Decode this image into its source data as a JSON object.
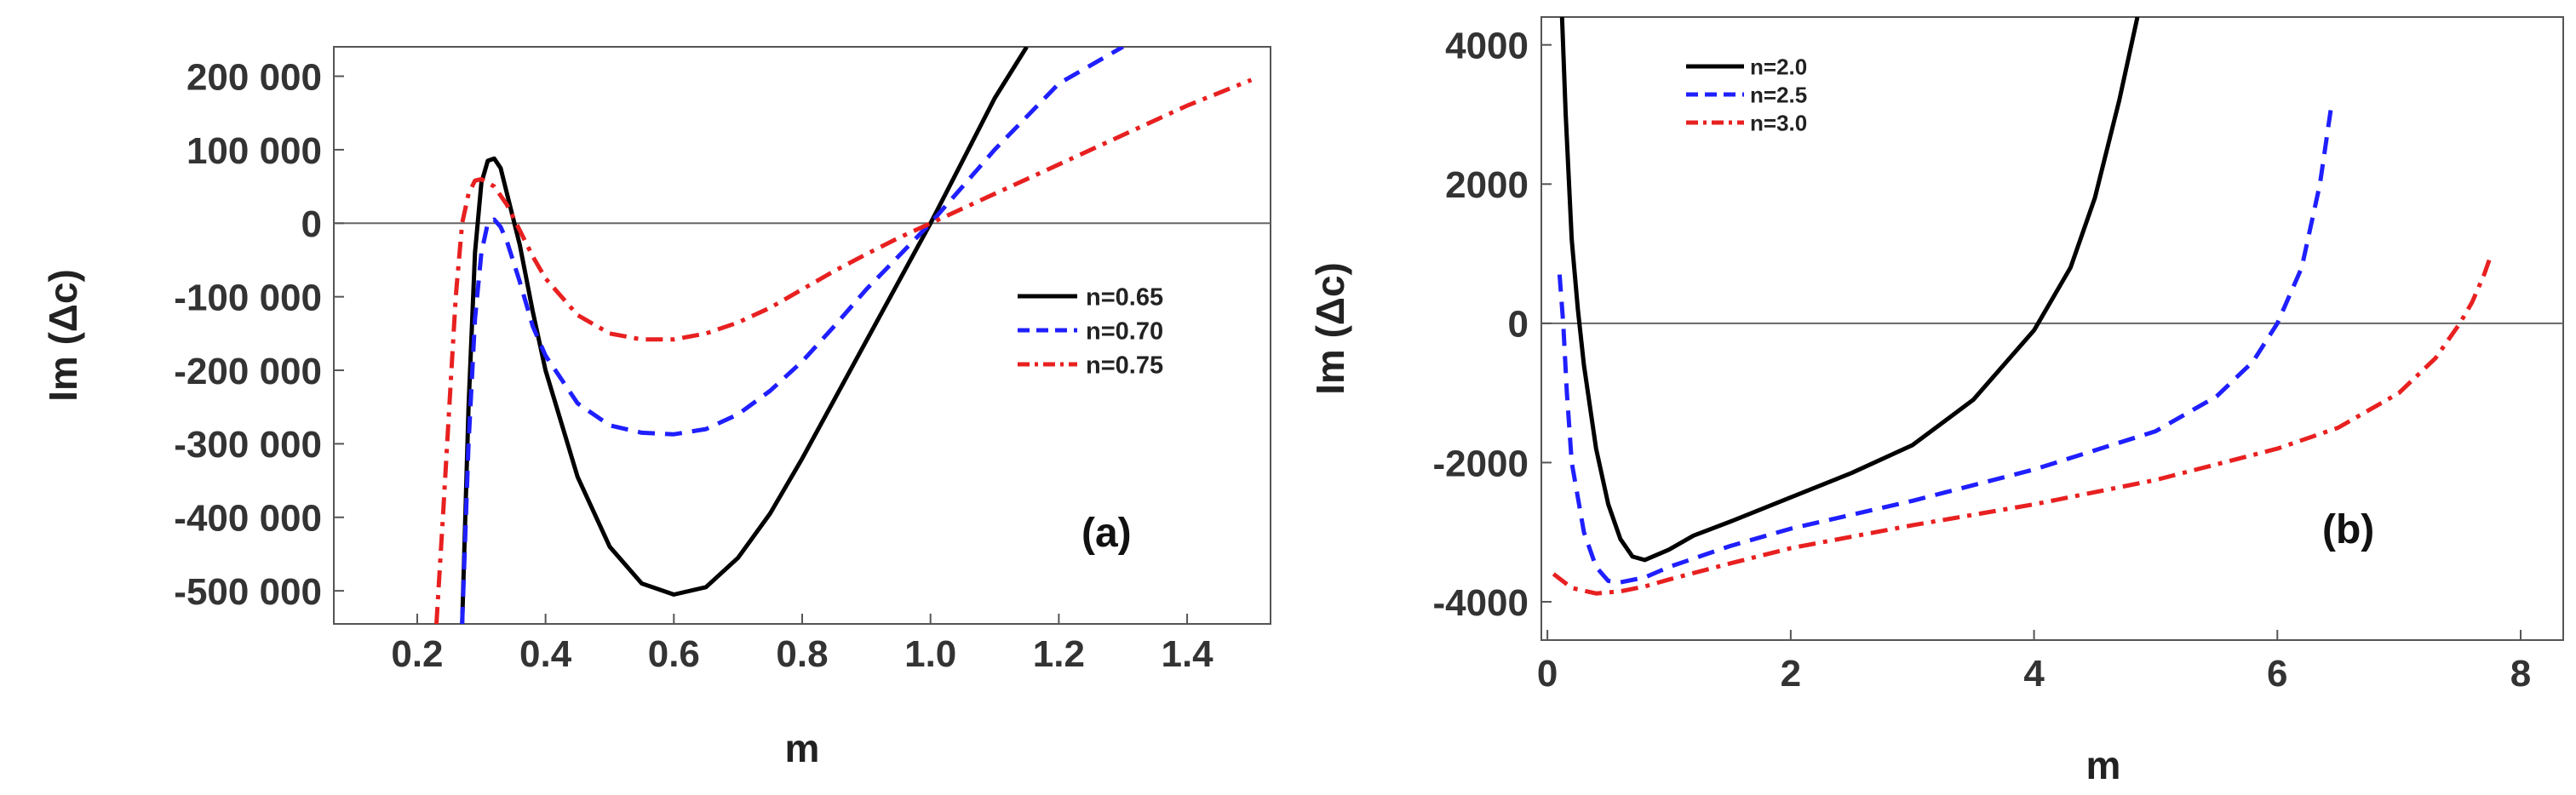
{
  "chart_data": [
    {
      "type": "line",
      "panel_label": "(a)",
      "xlabel": "m",
      "ylabel": "Im (Δc)",
      "xlim": [
        0.07,
        1.53
      ],
      "ylim": [
        -545000,
        240000
      ],
      "xticks": [
        0.2,
        0.4,
        0.6,
        0.8,
        1.0,
        1.2,
        1.4
      ],
      "xtick_labels": [
        "0.2",
        "0.4",
        "0.6",
        "0.8",
        "1.0",
        "1.2",
        "1.4"
      ],
      "yticks": [
        200000,
        100000,
        0,
        -100000,
        -200000,
        -300000,
        -400000,
        -500000
      ],
      "ytick_labels": [
        "200 000",
        "100 000",
        "0",
        "-100 000",
        "-200 000",
        "-300 000",
        "-400 000",
        "-500 000"
      ],
      "legend_position": "right",
      "grid": false,
      "zero_line": true,
      "series": [
        {
          "name": "n=0.65",
          "color": "#000000",
          "style": "solid",
          "x": [
            0.27,
            0.28,
            0.29,
            0.3,
            0.31,
            0.32,
            0.33,
            0.34,
            0.36,
            0.38,
            0.4,
            0.45,
            0.5,
            0.55,
            0.6,
            0.65,
            0.7,
            0.75,
            0.8,
            0.85,
            0.9,
            0.95,
            1.0,
            1.05,
            1.1,
            1.15
          ],
          "y": [
            -545000,
            -250000,
            -40000,
            55000,
            85000,
            88000,
            75000,
            40000,
            -30000,
            -120000,
            -200000,
            -345000,
            -440000,
            -490000,
            -505000,
            -495000,
            -455000,
            -395000,
            -320000,
            -240000,
            -160000,
            -80000,
            0,
            85000,
            170000,
            240000
          ]
        },
        {
          "name": "n=0.70",
          "color": "#1f1fff",
          "style": "dashed",
          "x": [
            0.27,
            0.28,
            0.29,
            0.3,
            0.31,
            0.32,
            0.33,
            0.34,
            0.36,
            0.38,
            0.4,
            0.45,
            0.5,
            0.55,
            0.6,
            0.65,
            0.7,
            0.75,
            0.8,
            0.85,
            0.9,
            0.95,
            1.0,
            1.05,
            1.1,
            1.2,
            1.3
          ],
          "y": [
            -545000,
            -300000,
            -130000,
            -40000,
            0,
            5000,
            -5000,
            -25000,
            -80000,
            -140000,
            -180000,
            -245000,
            -275000,
            -285000,
            -287000,
            -280000,
            -260000,
            -228000,
            -188000,
            -140000,
            -90000,
            -45000,
            0,
            50000,
            100000,
            190000,
            240000
          ]
        },
        {
          "name": "n=0.75",
          "color": "#e82020",
          "style": "dashdot",
          "x": [
            0.23,
            0.24,
            0.25,
            0.26,
            0.27,
            0.28,
            0.29,
            0.3,
            0.32,
            0.34,
            0.36,
            0.38,
            0.4,
            0.45,
            0.5,
            0.55,
            0.6,
            0.65,
            0.7,
            0.75,
            0.8,
            0.85,
            0.9,
            0.95,
            1.0,
            1.1,
            1.2,
            1.3,
            1.4,
            1.5
          ],
          "y": [
            -545000,
            -400000,
            -250000,
            -100000,
            0,
            40000,
            58000,
            60000,
            50000,
            25000,
            -10000,
            -45000,
            -75000,
            -125000,
            -150000,
            -158000,
            -158000,
            -150000,
            -135000,
            -115000,
            -90000,
            -65000,
            -42000,
            -20000,
            0,
            40000,
            80000,
            120000,
            160000,
            195000
          ]
        }
      ]
    },
    {
      "type": "line",
      "panel_label": "(b)",
      "xlabel": "m",
      "ylabel": "Im (Δc)",
      "xlim": [
        -0.05,
        8.35
      ],
      "ylim": [
        -4550,
        4400
      ],
      "xticks": [
        0,
        2,
        4,
        6,
        8
      ],
      "xtick_labels": [
        "0",
        "2",
        "4",
        "6",
        "8"
      ],
      "yticks": [
        4000,
        2000,
        0,
        -2000,
        -4000
      ],
      "ytick_labels": [
        "4000",
        "2000",
        "0",
        "-2000",
        "-4000"
      ],
      "legend_position": "top-left",
      "grid": false,
      "zero_line": true,
      "series": [
        {
          "name": "n=2.0",
          "color": "#000000",
          "style": "solid",
          "x": [
            0.12,
            0.15,
            0.2,
            0.25,
            0.3,
            0.4,
            0.5,
            0.6,
            0.7,
            0.8,
            1.0,
            1.2,
            1.5,
            2.0,
            2.5,
            3.0,
            3.5,
            4.0,
            4.3,
            4.5,
            4.7,
            4.85
          ],
          "y": [
            4400,
            3000,
            1200,
            200,
            -600,
            -1800,
            -2600,
            -3100,
            -3350,
            -3400,
            -3250,
            -3050,
            -2850,
            -2500,
            -2150,
            -1750,
            -1100,
            -100,
            800,
            1800,
            3200,
            4400
          ]
        },
        {
          "name": "n=2.5",
          "color": "#1f1fff",
          "style": "dashed",
          "x": [
            0.1,
            0.13,
            0.16,
            0.2,
            0.3,
            0.4,
            0.5,
            0.6,
            0.8,
            1.0,
            1.5,
            2.0,
            3.0,
            4.0,
            5.0,
            5.5,
            5.8,
            6.0,
            6.2,
            6.35,
            6.45
          ],
          "y": [
            700,
            0,
            -1000,
            -2000,
            -3000,
            -3500,
            -3700,
            -3720,
            -3650,
            -3500,
            -3200,
            -2950,
            -2550,
            -2100,
            -1550,
            -1050,
            -550,
            0,
            800,
            2000,
            3200
          ]
        },
        {
          "name": "n=3.0",
          "color": "#e82020",
          "style": "dashdot",
          "x": [
            0.05,
            0.2,
            0.4,
            0.6,
            0.8,
            1.0,
            1.5,
            2.0,
            3.0,
            4.0,
            5.0,
            6.0,
            6.5,
            7.0,
            7.3,
            7.5,
            7.6,
            7.7,
            7.75
          ],
          "y": [
            -3600,
            -3800,
            -3880,
            -3850,
            -3780,
            -3680,
            -3450,
            -3230,
            -2900,
            -2600,
            -2250,
            -1800,
            -1500,
            -1000,
            -500,
            0,
            300,
            700,
            950
          ]
        }
      ]
    }
  ]
}
